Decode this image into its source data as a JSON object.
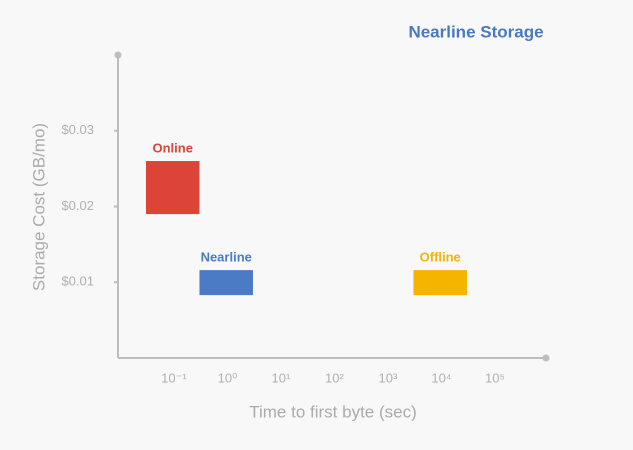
{
  "chart_data": {
    "type": "range",
    "title": "Nearline Storage",
    "x_label": "Time to first byte (sec)",
    "y_label": "Storage Cost (GB/mo)",
    "xscale": "log",
    "xlim": [
      0.009,
      900000
    ],
    "xticks": [
      {
        "value": 0.1,
        "label": "10⁻¹"
      },
      {
        "value": 1,
        "label": "10⁰"
      },
      {
        "value": 10,
        "label": "10¹"
      },
      {
        "value": 100,
        "label": "10²"
      },
      {
        "value": 1000,
        "label": "10³"
      },
      {
        "value": 10000,
        "label": "10⁴"
      },
      {
        "value": 100000,
        "label": "10⁵"
      }
    ],
    "ylim": [
      0,
      0.04
    ],
    "yticks": [
      {
        "value": 0.01,
        "label": "$0.01"
      },
      {
        "value": 0.02,
        "label": "$0.02"
      },
      {
        "value": 0.03,
        "label": "$0.03"
      }
    ],
    "grid": false,
    "series": [
      {
        "name": "Online",
        "color": "#db4437",
        "x": [
          0.03,
          0.3
        ],
        "y": [
          0.019,
          0.026
        ]
      },
      {
        "name": "Nearline",
        "color": "#4a7bc4",
        "x": [
          0.3,
          3
        ],
        "y": [
          0.0083,
          0.0116
        ]
      },
      {
        "name": "Offline",
        "color": "#f4b400",
        "x": [
          3000,
          30000
        ],
        "y": [
          0.0083,
          0.0116
        ]
      }
    ]
  }
}
